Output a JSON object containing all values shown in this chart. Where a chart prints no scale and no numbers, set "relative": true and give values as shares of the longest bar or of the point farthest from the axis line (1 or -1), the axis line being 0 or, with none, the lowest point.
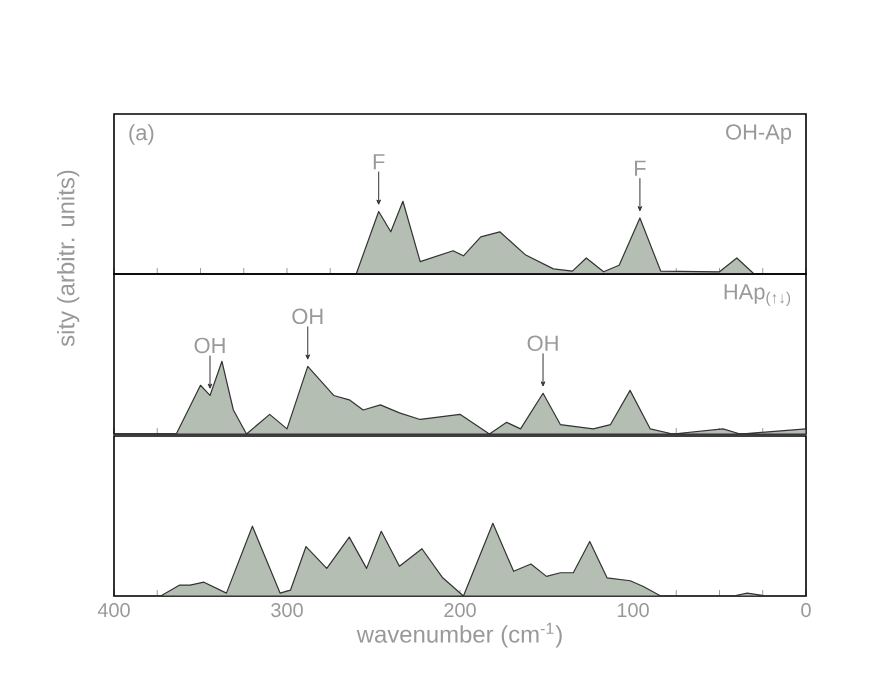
{
  "chart_data": [
    {
      "type": "area",
      "relative": true,
      "xlim": [
        400,
        0
      ],
      "tick_labels": false,
      "xticks": [
        {
          "value": 400,
          "label": null
        },
        {
          "value": 375,
          "label": null
        },
        {
          "value": 350,
          "label": null
        },
        {
          "value": 325,
          "label": null
        },
        {
          "value": 300,
          "label": null
        },
        {
          "value": 275,
          "label": null
        },
        {
          "value": 250,
          "label": null
        },
        {
          "value": 225,
          "label": null
        },
        {
          "value": 200,
          "label": null
        },
        {
          "value": 175,
          "label": null
        },
        {
          "value": 150,
          "label": null
        },
        {
          "value": 125,
          "label": null
        },
        {
          "value": 100,
          "label": null
        },
        {
          "value": 75,
          "label": null
        },
        {
          "value": 50,
          "label": null
        },
        {
          "value": 25,
          "label": null
        },
        {
          "value": 0,
          "label": null
        }
      ],
      "x": [
        400,
        260,
        247,
        240,
        233,
        223,
        204,
        198,
        188,
        177,
        162,
        146,
        135,
        127,
        117,
        108,
        96,
        84,
        50,
        40,
        30,
        0
      ],
      "series": [
        {
          "color": "#b4beb3",
          "values": [
            0,
            0,
            0.86,
            0.58,
            1,
            0.17,
            0.32,
            0.25,
            0.51,
            0.58,
            0.26,
            0.07,
            0.04,
            0.22,
            0.03,
            0.12,
            0.77,
            0.04,
            0.03,
            0.22,
            0,
            0
          ]
        }
      ],
      "annotations": [
        "(a)",
        "OH-Ap",
        {
          "text": "F",
          "x": 247,
          "y": 0.86
        },
        {
          "text": "F",
          "x": 96,
          "y": 0.77
        }
      ]
    },
    {
      "type": "area",
      "relative": true,
      "xlim": [
        400,
        0
      ],
      "tick_labels": false,
      "ylabel": "sity (arbitr. units)",
      "xticks": [
        {
          "value": 400,
          "label": null
        },
        {
          "value": 375,
          "label": null
        },
        {
          "value": 350,
          "label": null
        },
        {
          "value": 325,
          "label": null
        },
        {
          "value": 300,
          "label": null
        },
        {
          "value": 275,
          "label": null
        },
        {
          "value": 250,
          "label": null
        },
        {
          "value": 225,
          "label": null
        },
        {
          "value": 200,
          "label": null
        },
        {
          "value": 175,
          "label": null
        },
        {
          "value": 150,
          "label": null
        },
        {
          "value": 125,
          "label": null
        },
        {
          "value": 100,
          "label": null
        },
        {
          "value": 75,
          "label": null
        },
        {
          "value": 50,
          "label": null
        },
        {
          "value": 25,
          "label": null
        },
        {
          "value": 0,
          "label": null
        }
      ],
      "x": [
        400,
        364,
        350,
        344.5,
        337.6,
        331,
        323.4,
        310,
        300,
        288,
        273,
        264,
        256,
        246,
        235,
        223,
        200,
        183,
        173,
        165,
        152,
        142,
        123,
        113,
        101.7,
        90,
        77,
        48,
        38,
        0
      ],
      "series": [
        {
          "color": "#b4beb3",
          "values": [
            0,
            0,
            0.67,
            0.53,
            1,
            0.33,
            0,
            0.27,
            0.07,
            0.93,
            0.53,
            0.47,
            0.33,
            0.4,
            0.29,
            0.2,
            0.27,
            0,
            0.16,
            0.07,
            0.56,
            0.13,
            0.07,
            0.13,
            0.6,
            0.07,
            0,
            0.07,
            0,
            0.07
          ]
        }
      ],
      "annotations": [
        "HAp$_{(↑↓)}$",
        {
          "text": "OH",
          "x": 344.5,
          "y": 0.53
        },
        {
          "text": "OH",
          "x": 288,
          "y": 0.93
        },
        {
          "text": "OH",
          "x": 152,
          "y": 0.56
        }
      ]
    },
    {
      "type": "area",
      "relative": true,
      "xlim": [
        400,
        0
      ],
      "tick_labels": "x",
      "xlabel": "wavenumber (cm$^{-1}$)",
      "xticks": [
        400,
        {
          "value": 375,
          "label": null
        },
        {
          "value": 350,
          "label": null
        },
        {
          "value": 325,
          "label": null
        },
        300,
        {
          "value": 275,
          "label": null
        },
        {
          "value": 250,
          "label": null
        },
        {
          "value": 225,
          "label": null
        },
        200,
        {
          "value": 175,
          "label": null
        },
        {
          "value": 150,
          "label": null
        },
        {
          "value": 125,
          "label": null
        },
        100,
        {
          "value": 75,
          "label": null
        },
        {
          "value": 50,
          "label": null
        },
        {
          "value": 25,
          "label": null
        },
        0
      ],
      "x": [
        400,
        373,
        362,
        356,
        348,
        335,
        320,
        304,
        298,
        289,
        277,
        264,
        254,
        245.5,
        235,
        222,
        210,
        198,
        181,
        169,
        159,
        150,
        142,
        134.5,
        125,
        115,
        101.6,
        94,
        84,
        42,
        34,
        23,
        0
      ],
      "series": [
        {
          "color": "#b4beb3",
          "values": [
            0,
            0,
            0.15,
            0.15,
            0.19,
            0.04,
            0.96,
            0.04,
            0.08,
            0.68,
            0.38,
            0.81,
            0.38,
            0.89,
            0.41,
            0.65,
            0.25,
            0,
            1,
            0.34,
            0.44,
            0.27,
            0.32,
            0.32,
            0.75,
            0.25,
            0.21,
            0.13,
            0,
            0,
            0.04,
            0,
            0
          ]
        }
      ]
    }
  ]
}
